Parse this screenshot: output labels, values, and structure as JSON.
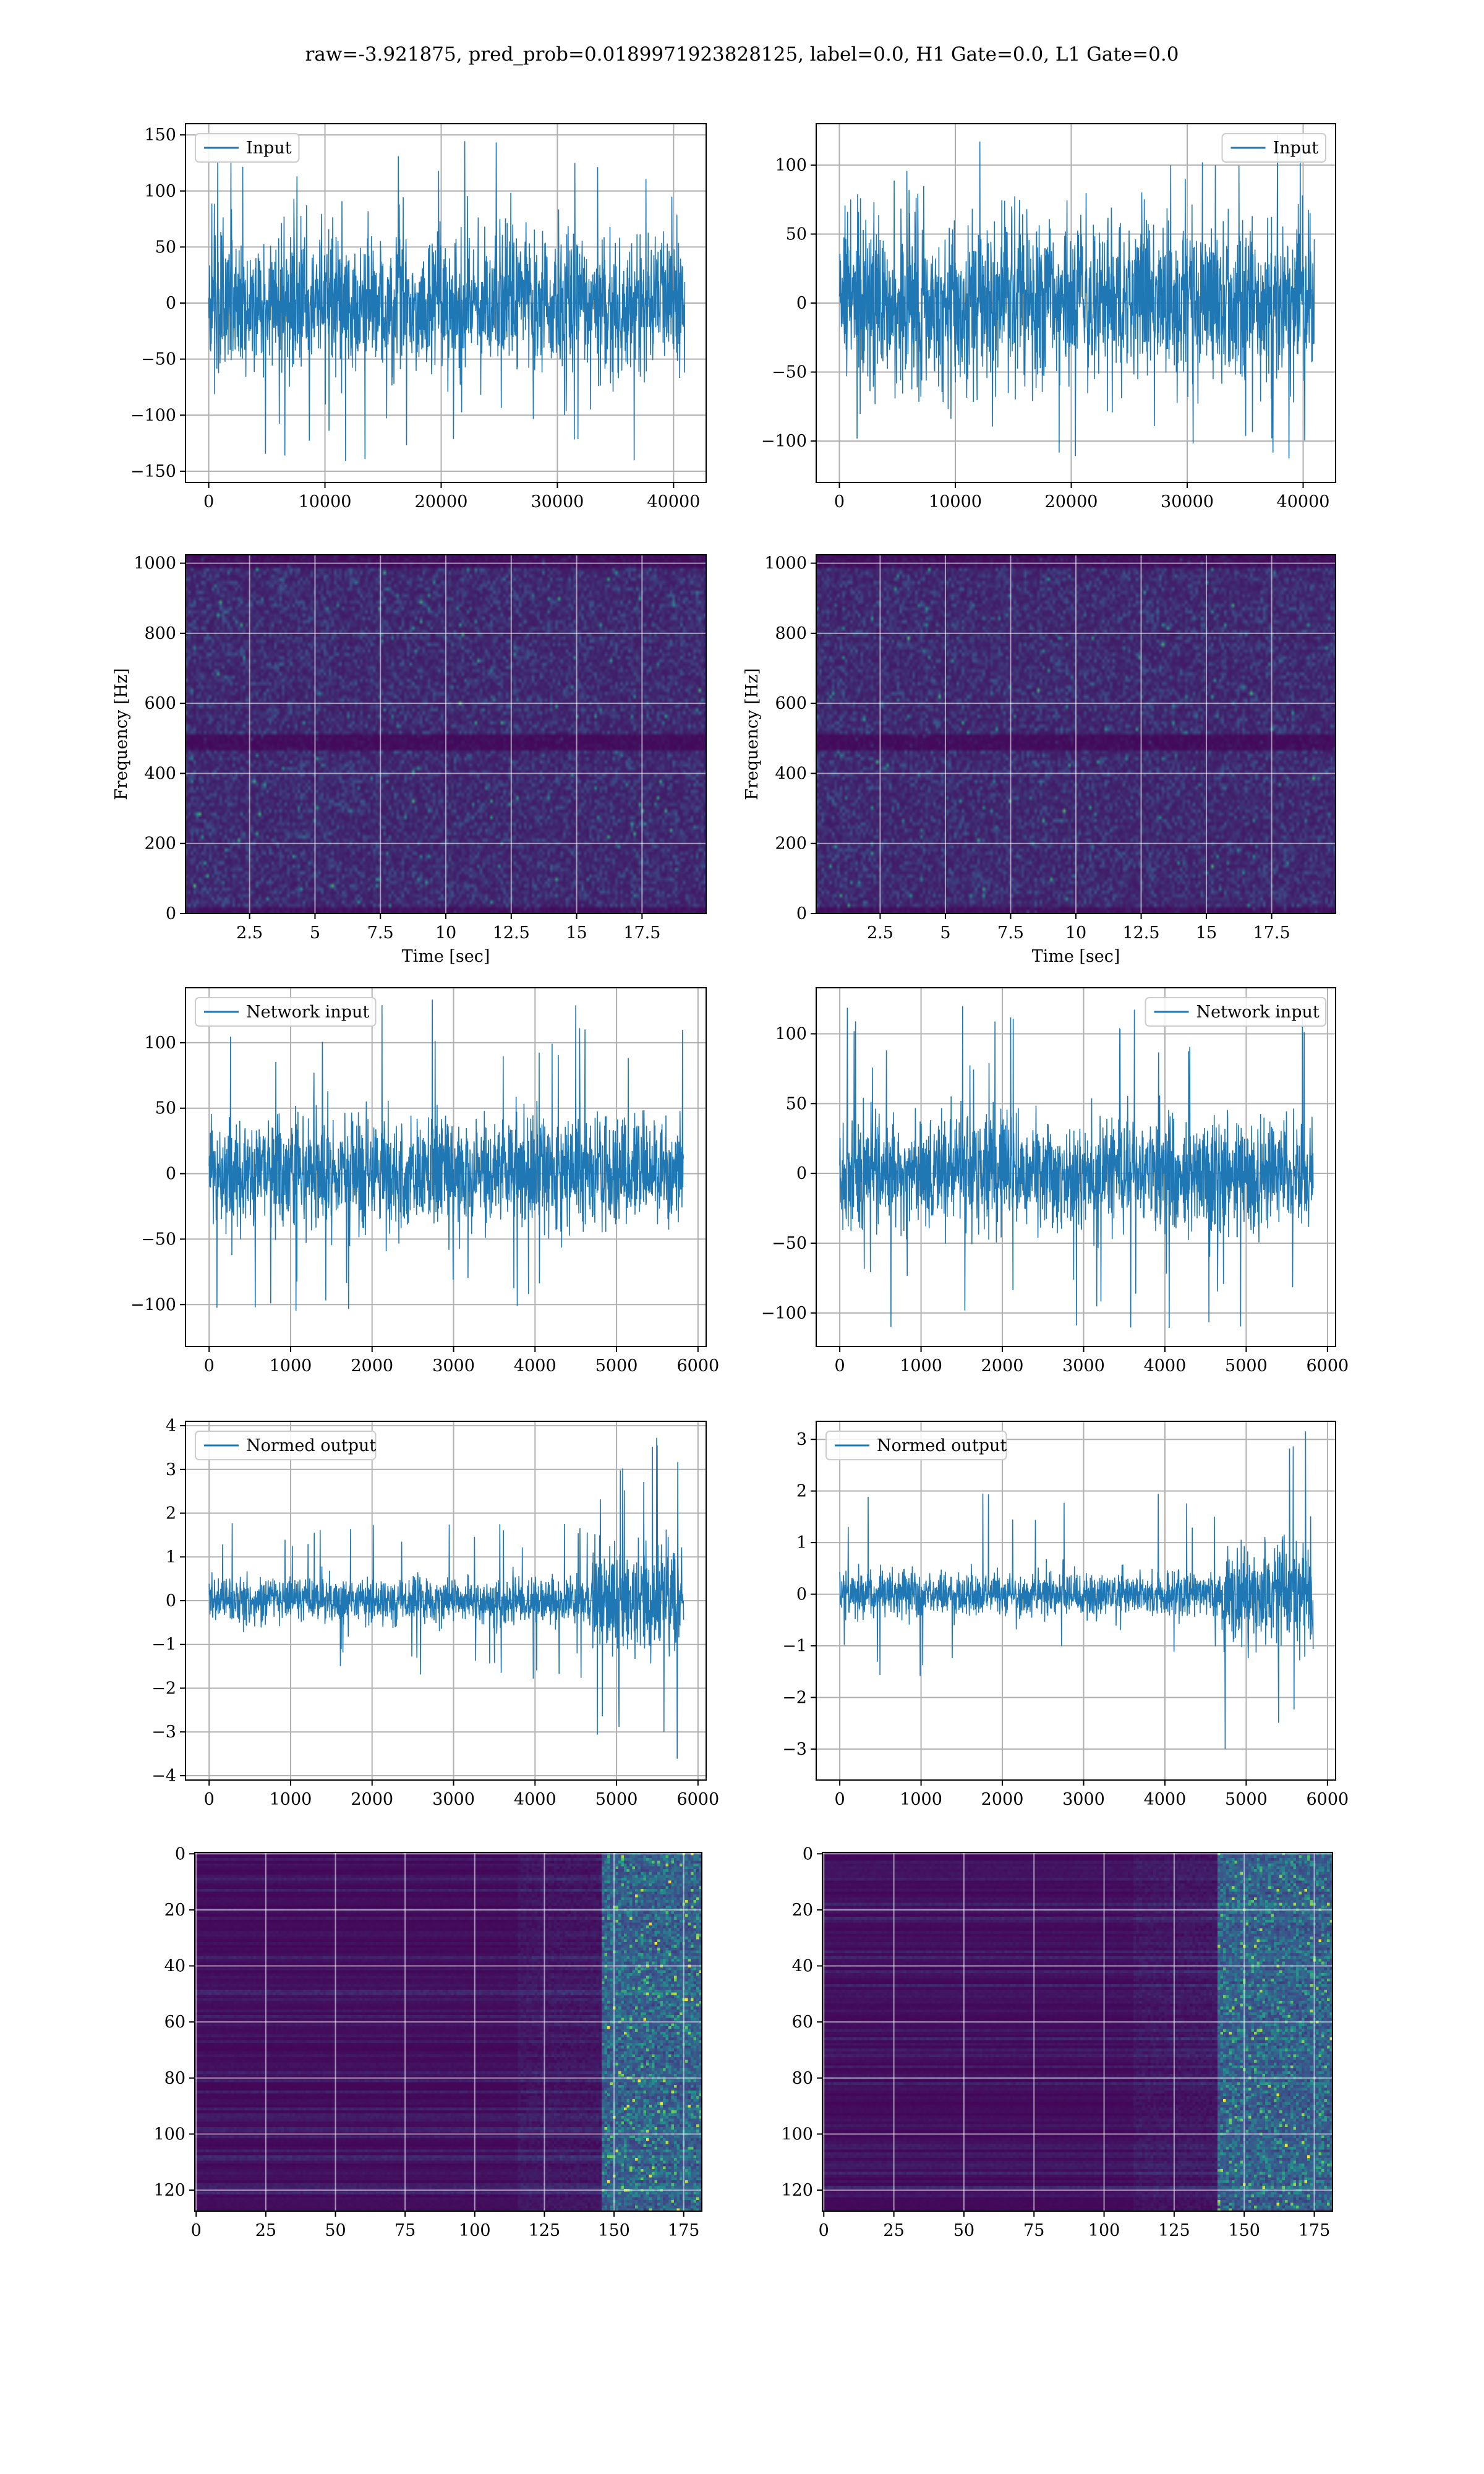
{
  "figure": {
    "suptitle": "raw=-3.921875, pred_prob=0.0189971923828125, label=0.0, H1 Gate=0.0, L1 Gate=0.0"
  },
  "colors": {
    "line": "#1f77b4",
    "grid": "#b0b0b0",
    "viridis_low": "#440154",
    "viridis_mid": "#21918c",
    "viridis_high": "#fde725"
  },
  "chart_data": [
    {
      "id": "h1-input",
      "type": "line",
      "title": "",
      "xlabel": "",
      "ylabel": "",
      "xlim": [
        -2000,
        42800
      ],
      "ylim": [
        -160,
        160
      ],
      "xticks": [
        0,
        10000,
        20000,
        30000,
        40000
      ],
      "yticks": [
        -150,
        -100,
        -50,
        0,
        50,
        100,
        150
      ],
      "series": [
        {
          "name": "Input",
          "n_samples": 40960,
          "x_range": [
            0,
            40960
          ],
          "envelope": {
            "core": [
              -85,
              85
            ],
            "peaks": [
              -145,
              145
            ]
          }
        }
      ],
      "legend": "upper left",
      "grid": true
    },
    {
      "id": "l1-input",
      "type": "line",
      "title": "",
      "xlabel": "",
      "ylabel": "",
      "xlim": [
        -2000,
        42800
      ],
      "ylim": [
        -130,
        130
      ],
      "xticks": [
        0,
        10000,
        20000,
        30000,
        40000
      ],
      "yticks": [
        -100,
        -50,
        0,
        50,
        100
      ],
      "series": [
        {
          "name": "Input",
          "n_samples": 40960,
          "x_range": [
            0,
            40960
          ],
          "envelope": {
            "core": [
              -80,
              80
            ],
            "peaks": [
              -115,
              122
            ]
          }
        }
      ],
      "legend": "upper right",
      "grid": true
    },
    {
      "id": "h1-spectrogram",
      "type": "heatmap",
      "title": "",
      "xlabel": "Time [sec]",
      "ylabel": "Frequency [Hz]",
      "xlim": [
        0.05,
        19.95
      ],
      "ylim": [
        0,
        1024
      ],
      "xticks": [
        2.5,
        5.0,
        7.5,
        10.0,
        12.5,
        15.0,
        17.5
      ],
      "yticks": [
        0,
        200,
        400,
        600,
        800,
        1000
      ],
      "colormap": "viridis",
      "dark_band_hz": [
        470,
        520
      ],
      "grid": true
    },
    {
      "id": "l1-spectrogram",
      "type": "heatmap",
      "title": "",
      "xlabel": "Time [sec]",
      "ylabel": "Frequency [Hz]",
      "xlim": [
        0.05,
        19.95
      ],
      "ylim": [
        0,
        1024
      ],
      "xticks": [
        2.5,
        5.0,
        7.5,
        10.0,
        12.5,
        15.0,
        17.5
      ],
      "yticks": [
        0,
        200,
        400,
        600,
        800,
        1000
      ],
      "colormap": "viridis",
      "dark_band_hz": [
        470,
        520
      ],
      "grid": true
    },
    {
      "id": "h1-network-input",
      "type": "line",
      "title": "",
      "xlabel": "",
      "ylabel": "",
      "xlim": [
        -290,
        6100
      ],
      "ylim": [
        -132,
        142
      ],
      "xticks": [
        0,
        1000,
        2000,
        3000,
        4000,
        5000,
        6000
      ],
      "yticks": [
        -100,
        -50,
        0,
        50,
        100
      ],
      "series": [
        {
          "name": "Network input",
          "n_samples": 5824,
          "x_range": [
            0,
            5824
          ],
          "envelope": {
            "core": [
              -60,
              60
            ],
            "peaks": [
              -120,
              135
            ]
          }
        }
      ],
      "legend": "upper left",
      "grid": true
    },
    {
      "id": "l1-network-input",
      "type": "line",
      "title": "",
      "xlabel": "",
      "ylabel": "",
      "xlim": [
        -290,
        6100
      ],
      "ylim": [
        -124,
        133
      ],
      "xticks": [
        0,
        1000,
        2000,
        3000,
        4000,
        5000,
        6000
      ],
      "yticks": [
        -100,
        -50,
        0,
        50,
        100
      ],
      "series": [
        {
          "name": "Network input",
          "n_samples": 5824,
          "x_range": [
            0,
            5824
          ],
          "envelope": {
            "core": [
              -55,
              55
            ],
            "peaks": [
              -115,
              122
            ]
          }
        }
      ],
      "legend": "upper right",
      "grid": true
    },
    {
      "id": "h1-normed-output",
      "type": "line",
      "title": "",
      "xlabel": "",
      "ylabel": "",
      "xlim": [
        -290,
        6100
      ],
      "ylim": [
        -4.1,
        4.1
      ],
      "xticks": [
        0,
        1000,
        2000,
        3000,
        4000,
        5000,
        6000
      ],
      "yticks": [
        -4,
        -3,
        -2,
        -1,
        0,
        1,
        2,
        3,
        4
      ],
      "series": [
        {
          "name": "Normed output",
          "n_samples": 5824,
          "x_range": [
            0,
            5824
          ],
          "envelope": {
            "core_early": [
              -0.7,
              0.7
            ],
            "peaks_early": [
              -1.8,
              1.8
            ],
            "transition_x": 4700,
            "core_late": [
              -1.7,
              1.7
            ],
            "peaks_late": [
              -3.8,
              3.8
            ]
          }
        }
      ],
      "legend": "upper left",
      "grid": true
    },
    {
      "id": "l1-normed-output",
      "type": "line",
      "title": "",
      "xlabel": "",
      "ylabel": "",
      "xlim": [
        -290,
        6100
      ],
      "ylim": [
        -3.6,
        3.35
      ],
      "xticks": [
        0,
        1000,
        2000,
        3000,
        4000,
        5000,
        6000
      ],
      "yticks": [
        -3,
        -2,
        -1,
        0,
        1,
        2,
        3
      ],
      "series": [
        {
          "name": "Normed output",
          "n_samples": 5824,
          "x_range": [
            0,
            5824
          ],
          "envelope": {
            "core_early": [
              -0.6,
              0.6
            ],
            "peaks_early": [
              -1.6,
              2.0
            ],
            "transition_x": 4700,
            "core_late": [
              -1.4,
              1.4
            ],
            "peaks_late": [
              -3.3,
              3.2
            ]
          }
        }
      ],
      "legend": "upper left",
      "grid": true
    },
    {
      "id": "h1-feature-map",
      "type": "heatmap",
      "title": "",
      "xlabel": "",
      "ylabel": "",
      "xlim": [
        -0.5,
        181.5
      ],
      "ylim": [
        127.5,
        -0.5
      ],
      "rows": 128,
      "cols": 182,
      "xticks": [
        0,
        25,
        50,
        75,
        100,
        125,
        150,
        175
      ],
      "yticks": [
        0,
        20,
        40,
        60,
        80,
        100,
        120
      ],
      "colormap": "viridis",
      "activity_onset_col": 145,
      "grid": true
    },
    {
      "id": "l1-feature-map",
      "type": "heatmap",
      "title": "",
      "xlabel": "",
      "ylabel": "",
      "xlim": [
        -0.5,
        181.5
      ],
      "ylim": [
        127.5,
        -0.5
      ],
      "rows": 128,
      "cols": 182,
      "xticks": [
        0,
        25,
        50,
        75,
        100,
        125,
        150,
        175
      ],
      "yticks": [
        0,
        20,
        40,
        60,
        80,
        100,
        120
      ],
      "colormap": "viridis",
      "activity_onset_col": 140,
      "grid": true
    }
  ]
}
